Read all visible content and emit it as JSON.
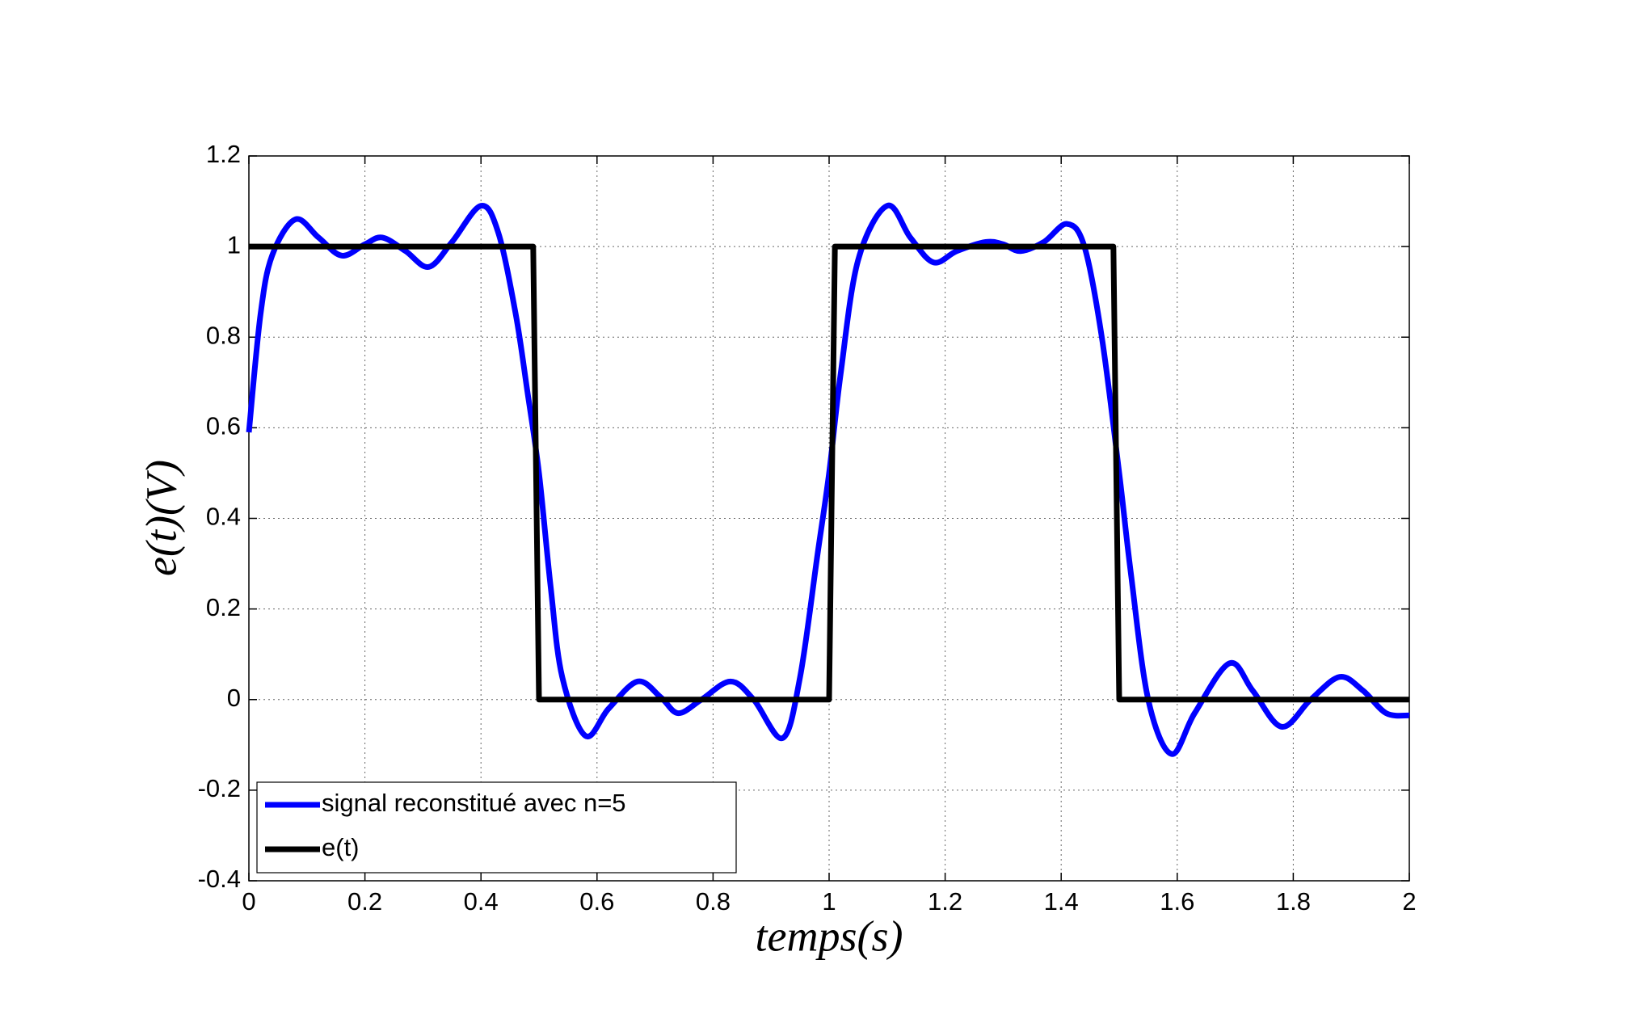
{
  "chart_data": {
    "type": "line",
    "x_label": "temps(s)",
    "y_label": "e(t)(V)",
    "xlim": [
      0,
      2
    ],
    "xticks": [
      0,
      0.2,
      0.4,
      0.6,
      0.8,
      1,
      1.2,
      1.4,
      1.6,
      1.8,
      2
    ],
    "ylim": [
      -0.4,
      1.2
    ],
    "yticks": [
      -0.4,
      -0.2,
      0,
      0.2,
      0.4,
      0.6,
      0.8,
      1,
      1.2
    ],
    "grid": true,
    "legend": "lower left",
    "series": [
      {
        "name": "signal reconstitué avec n=5",
        "color": "#0000ff",
        "smooth": true,
        "x": [
          0,
          0.02,
          0.04,
          0.08,
          0.12,
          0.16,
          0.2,
          0.23,
          0.27,
          0.31,
          0.35,
          0.4,
          0.43,
          0.46,
          0.48,
          0.5,
          0.52,
          0.54,
          0.58,
          0.62,
          0.67,
          0.71,
          0.74,
          0.78,
          0.83,
          0.87,
          0.92,
          0.95,
          0.98,
          1.0,
          1.02,
          1.05,
          1.1,
          1.14,
          1.18,
          1.22,
          1.27,
          1.3,
          1.33,
          1.37,
          1.41,
          1.44,
          1.47,
          1.5,
          1.52,
          1.55,
          1.59,
          1.63,
          1.69,
          1.73,
          1.78,
          1.83,
          1.88,
          1.92,
          1.96,
          2.0
        ],
        "values": [
          0.59,
          0.85,
          0.98,
          1.06,
          1.02,
          0.98,
          1.005,
          1.02,
          0.99,
          0.955,
          1.01,
          1.09,
          1.03,
          0.85,
          0.68,
          0.5,
          0.25,
          0.05,
          -0.08,
          -0.02,
          0.04,
          0.005,
          -0.03,
          0.0,
          0.04,
          0.0,
          -0.085,
          0.05,
          0.32,
          0.5,
          0.72,
          0.97,
          1.09,
          1.02,
          0.965,
          0.99,
          1.01,
          1.005,
          0.99,
          1.01,
          1.05,
          1.0,
          0.8,
          0.5,
          0.28,
          0.0,
          -0.12,
          -0.03,
          0.08,
          0.02,
          -0.06,
          0.0,
          0.05,
          0.02,
          -0.03,
          -0.035
        ]
      },
      {
        "name": "e(t)",
        "color": "#000000",
        "smooth": false,
        "x": [
          0,
          0.49,
          0.5,
          1.0,
          1.01,
          1.49,
          1.5,
          2.0
        ],
        "values": [
          1,
          1,
          0,
          0,
          1,
          1,
          0,
          0
        ]
      }
    ]
  }
}
